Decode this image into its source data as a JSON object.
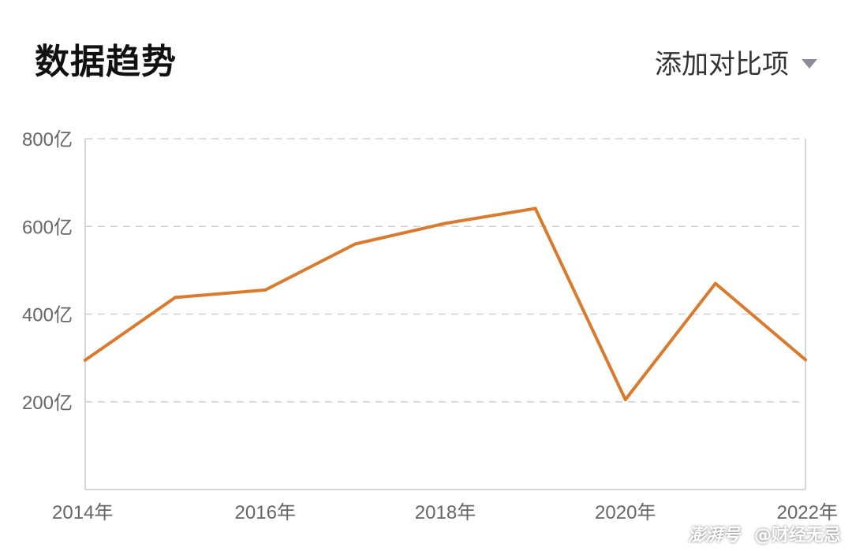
{
  "header": {
    "title": "数据趋势",
    "compare_label": "添加对比项",
    "compare_icon": "caret-down-icon"
  },
  "watermark": {
    "logo": "澎湃号",
    "account": "@财经无忌"
  },
  "colors": {
    "line": "#d97a2f",
    "grid": "#cfcfcf",
    "axis": "#d6d6d6",
    "tick_text": "#666666"
  },
  "chart_data": {
    "type": "line",
    "title": "",
    "xlabel": "",
    "ylabel": "",
    "x": [
      "2014年",
      "2015年",
      "2016年",
      "2017年",
      "2018年",
      "2019年",
      "2020年",
      "2021年",
      "2022年"
    ],
    "series": [
      {
        "values": [
          295,
          438,
          455,
          560,
          607,
          641,
          205,
          470,
          296
        ]
      }
    ],
    "ylim": [
      0,
      800
    ],
    "yticks": [
      200,
      400,
      600,
      800
    ],
    "ytick_labels": [
      "200亿",
      "400亿",
      "600亿",
      "800亿"
    ],
    "xtick_labels": [
      "2014年",
      "2016年",
      "2018年",
      "2020年",
      "2022年"
    ],
    "grid": true,
    "legend": "none"
  }
}
